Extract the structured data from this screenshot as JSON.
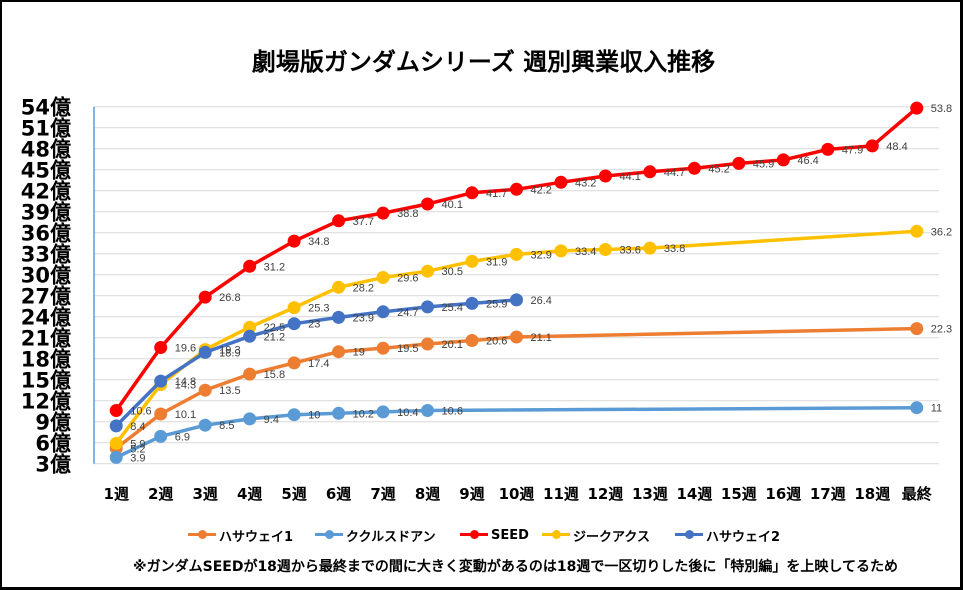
{
  "title": "劇場版ガンダムシリーズ 週別興業収入推移",
  "footnote": "※ガンダムSEEDが18週から最終までの間に大きく変動があるのは18週で一区切りした後に「特別編」を上映してるため",
  "chart_data": {
    "type": "line",
    "title": "劇場版ガンダムシリーズ 週別興業収入推移",
    "xlabel": "",
    "ylabel": "",
    "y_unit": "億",
    "ylim": [
      3,
      54
    ],
    "ystep": 3,
    "grid": true,
    "legend_position": "bottom",
    "data_labels": true,
    "ytick_labels": [
      "3億",
      "6億",
      "9億",
      "12億",
      "15億",
      "18億",
      "21億",
      "24億",
      "27億",
      "30億",
      "33億",
      "36億",
      "39億",
      "42億",
      "45億",
      "48億",
      "51億",
      "54億"
    ],
    "categories": [
      "1週",
      "2週",
      "3週",
      "4週",
      "5週",
      "6週",
      "7週",
      "8週",
      "9週",
      "10週",
      "11週",
      "12週",
      "13週",
      "14週",
      "15週",
      "16週",
      "17週",
      "18週",
      "最終"
    ],
    "series": [
      {
        "name": "ハサウェイ1",
        "color": "#ED7D31",
        "values": [
          5.2,
          10.1,
          13.5,
          15.8,
          17.4,
          19,
          19.5,
          20.1,
          20.6,
          21.1,
          null,
          null,
          null,
          null,
          null,
          null,
          null,
          null,
          22.3
        ]
      },
      {
        "name": "ククルスドアン",
        "color": "#5B9BD5",
        "values": [
          3.9,
          6.9,
          8.5,
          9.4,
          10,
          10.2,
          10.4,
          10.6,
          null,
          null,
          null,
          null,
          null,
          null,
          null,
          null,
          null,
          null,
          11
        ]
      },
      {
        "name": "SEED",
        "color": "#FF0000",
        "values": [
          10.6,
          19.6,
          26.8,
          31.2,
          34.8,
          37.7,
          38.8,
          40.1,
          41.7,
          42.2,
          43.2,
          44.1,
          44.7,
          45.2,
          45.9,
          46.4,
          47.9,
          48.4,
          53.8
        ]
      },
      {
        "name": "ジークアクス",
        "color": "#FFC000",
        "values": [
          5.9,
          14.3,
          19.3,
          22.5,
          25.3,
          28.2,
          29.6,
          30.5,
          31.9,
          32.9,
          33.4,
          33.6,
          33.8,
          null,
          null,
          null,
          null,
          null,
          36.2
        ]
      },
      {
        "name": "ハサウェイ2",
        "color": "#4472C4",
        "values": [
          8.4,
          14.8,
          18.9,
          21.2,
          23,
          23.9,
          24.7,
          25.4,
          25.9,
          26.4,
          null,
          null,
          null,
          null,
          null,
          null,
          null,
          null,
          null
        ]
      }
    ]
  }
}
